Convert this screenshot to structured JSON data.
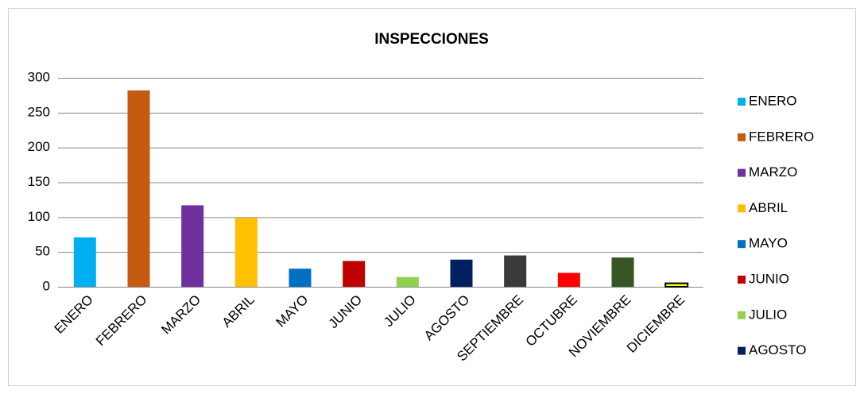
{
  "chart_data": {
    "type": "bar",
    "title": "INSPECCIONES",
    "categories": [
      "ENERO",
      "FEBRERO",
      "MARZO",
      "ABRIL",
      "MAYO",
      "JUNIO",
      "JULIO",
      "AGOSTO",
      "SEPTIEMBRE",
      "OCTUBRE",
      "NOVIEMBRE",
      "DICIEMBRE"
    ],
    "values": [
      71,
      282,
      117,
      99,
      26,
      37,
      14,
      39,
      45,
      20,
      42,
      5
    ],
    "colors": [
      "#00b0f0",
      "#c55a11",
      "#7030a0",
      "#ffc000",
      "#0070c0",
      "#c00000",
      "#92d050",
      "#002060",
      "#3a3a3a",
      "#ff0000",
      "#375623",
      "#ffff00"
    ],
    "ylim": [
      0,
      300
    ],
    "yticks": [
      0,
      50,
      100,
      150,
      200,
      250,
      300
    ],
    "grid": true,
    "legend": "right"
  }
}
